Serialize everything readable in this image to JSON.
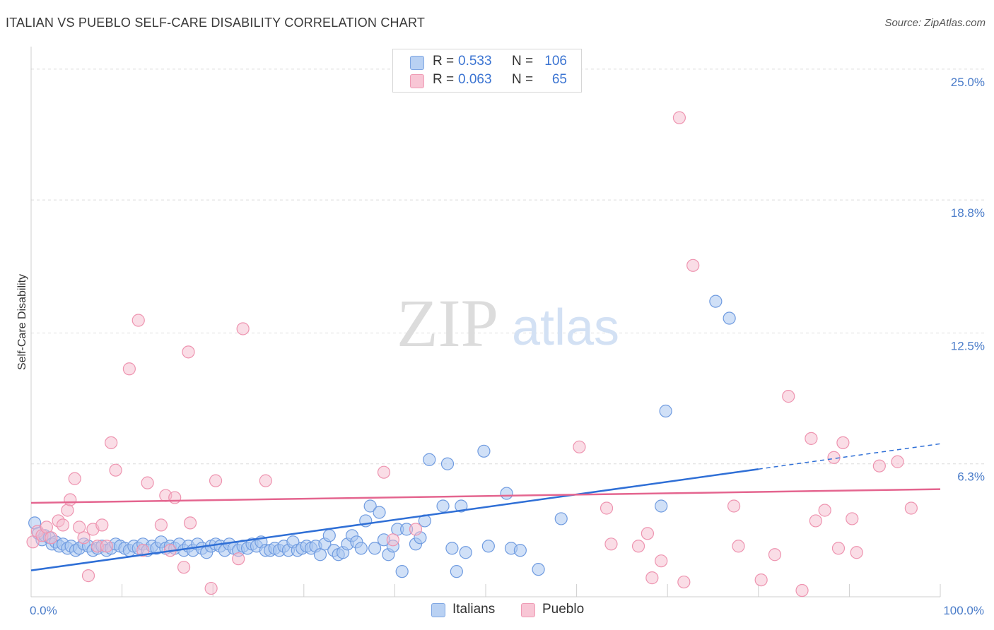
{
  "title": "ITALIAN VS PUEBLO SELF-CARE DISABILITY CORRELATION CHART",
  "source": "Source: ZipAtlas.com",
  "watermark": {
    "zip": "ZIP",
    "atlas": "atlas"
  },
  "legend": [
    {
      "r_label": "R =",
      "r_value": "0.533",
      "n_label": "N =",
      "n_value": "106"
    },
    {
      "r_label": "R =",
      "r_value": "0.063",
      "n_label": "N =",
      "n_value": "65"
    }
  ],
  "colors": {
    "italians_fill": "#a9c7f0",
    "italians_stroke": "#6f9be0",
    "italians_line": "#2f6fd6",
    "pueblo_fill": "#f6bccd",
    "pueblo_stroke": "#ee94b0",
    "pueblo_line": "#e4658f",
    "tick_text": "#4a7cc9",
    "grid": "#dcdcdc"
  },
  "chart_data": {
    "type": "scatter",
    "title": "ITALIAN VS PUEBLO SELF-CARE DISABILITY CORRELATION CHART",
    "xlabel": "",
    "ylabel": "Self-Care Disability",
    "xlim": [
      0,
      100
    ],
    "ylim": [
      0,
      25.8
    ],
    "x_tick_labels": [
      {
        "value": 0,
        "label": "0.0%"
      },
      {
        "value": 100,
        "label": "100.0%"
      }
    ],
    "y_tick_labels": [
      {
        "value": 6.3,
        "label": "6.3%"
      },
      {
        "value": 12.5,
        "label": "12.5%"
      },
      {
        "value": 18.8,
        "label": "18.8%"
      },
      {
        "value": 25.0,
        "label": "25.0%"
      }
    ],
    "series": [
      {
        "name": "Italians",
        "trend": {
          "x0": 0,
          "y0": 1.25,
          "x1": 80,
          "y1": 6.05,
          "dash_to_x": 100,
          "dash_to_y": 7.25
        },
        "points": [
          [
            0.4,
            3.5
          ],
          [
            0.8,
            3.0
          ],
          [
            1.2,
            2.7
          ],
          [
            1.5,
            2.9
          ],
          [
            2.0,
            2.8
          ],
          [
            2.3,
            2.5
          ],
          [
            2.7,
            2.6
          ],
          [
            3.1,
            2.4
          ],
          [
            3.5,
            2.5
          ],
          [
            4.0,
            2.3
          ],
          [
            4.4,
            2.4
          ],
          [
            4.9,
            2.2
          ],
          [
            5.3,
            2.3
          ],
          [
            5.8,
            2.5
          ],
          [
            6.3,
            2.4
          ],
          [
            6.8,
            2.2
          ],
          [
            7.3,
            2.3
          ],
          [
            7.8,
            2.4
          ],
          [
            8.3,
            2.2
          ],
          [
            8.8,
            2.3
          ],
          [
            9.3,
            2.5
          ],
          [
            9.8,
            2.4
          ],
          [
            10.3,
            2.3
          ],
          [
            10.8,
            2.2
          ],
          [
            11.3,
            2.4
          ],
          [
            11.8,
            2.3
          ],
          [
            12.3,
            2.5
          ],
          [
            12.8,
            2.2
          ],
          [
            13.3,
            2.4
          ],
          [
            13.8,
            2.3
          ],
          [
            14.3,
            2.6
          ],
          [
            14.8,
            2.3
          ],
          [
            15.3,
            2.4
          ],
          [
            15.8,
            2.3
          ],
          [
            16.3,
            2.5
          ],
          [
            16.8,
            2.2
          ],
          [
            17.3,
            2.4
          ],
          [
            17.8,
            2.2
          ],
          [
            18.3,
            2.5
          ],
          [
            18.8,
            2.3
          ],
          [
            19.3,
            2.1
          ],
          [
            19.8,
            2.4
          ],
          [
            20.3,
            2.5
          ],
          [
            20.8,
            2.4
          ],
          [
            21.3,
            2.2
          ],
          [
            21.8,
            2.5
          ],
          [
            22.3,
            2.3
          ],
          [
            22.8,
            2.2
          ],
          [
            23.3,
            2.4
          ],
          [
            23.8,
            2.3
          ],
          [
            24.3,
            2.5
          ],
          [
            24.8,
            2.4
          ],
          [
            25.3,
            2.6
          ],
          [
            25.8,
            2.2
          ],
          [
            26.3,
            2.2
          ],
          [
            26.8,
            2.3
          ],
          [
            27.3,
            2.2
          ],
          [
            27.8,
            2.4
          ],
          [
            28.3,
            2.2
          ],
          [
            28.8,
            2.6
          ],
          [
            29.3,
            2.2
          ],
          [
            29.8,
            2.3
          ],
          [
            30.3,
            2.4
          ],
          [
            30.8,
            2.3
          ],
          [
            31.3,
            2.4
          ],
          [
            31.8,
            2.0
          ],
          [
            32.3,
            2.5
          ],
          [
            32.8,
            2.9
          ],
          [
            33.3,
            2.2
          ],
          [
            33.8,
            2.0
          ],
          [
            34.3,
            2.1
          ],
          [
            34.8,
            2.5
          ],
          [
            35.3,
            2.9
          ],
          [
            35.8,
            2.6
          ],
          [
            36.3,
            2.3
          ],
          [
            36.8,
            3.6
          ],
          [
            37.3,
            4.3
          ],
          [
            37.8,
            2.3
          ],
          [
            38.3,
            4.0
          ],
          [
            38.8,
            2.7
          ],
          [
            39.3,
            2.0
          ],
          [
            39.8,
            2.4
          ],
          [
            40.3,
            3.2
          ],
          [
            40.8,
            1.2
          ],
          [
            41.3,
            3.2
          ],
          [
            42.3,
            2.5
          ],
          [
            42.8,
            2.8
          ],
          [
            43.3,
            3.6
          ],
          [
            43.8,
            6.5
          ],
          [
            45.3,
            4.3
          ],
          [
            45.8,
            6.3
          ],
          [
            46.3,
            2.3
          ],
          [
            46.8,
            1.2
          ],
          [
            47.3,
            4.3
          ],
          [
            47.8,
            2.1
          ],
          [
            49.8,
            6.9
          ],
          [
            50.3,
            2.4
          ],
          [
            52.3,
            4.9
          ],
          [
            52.8,
            2.3
          ],
          [
            53.8,
            2.2
          ],
          [
            55.8,
            1.3
          ],
          [
            58.3,
            3.7
          ],
          [
            69.3,
            4.3
          ],
          [
            69.8,
            8.8
          ],
          [
            75.3,
            14.0
          ],
          [
            76.8,
            13.2
          ]
        ]
      },
      {
        "name": "Pueblo",
        "trend": {
          "x0": 0,
          "y0": 4.45,
          "x1": 100,
          "y1": 5.1
        },
        "points": [
          [
            0.2,
            2.6
          ],
          [
            0.7,
            3.1
          ],
          [
            1.2,
            2.9
          ],
          [
            1.7,
            3.3
          ],
          [
            2.2,
            2.8
          ],
          [
            3.0,
            3.6
          ],
          [
            3.5,
            3.4
          ],
          [
            4.0,
            4.1
          ],
          [
            4.3,
            4.6
          ],
          [
            4.8,
            5.6
          ],
          [
            5.3,
            3.3
          ],
          [
            5.8,
            2.8
          ],
          [
            6.3,
            1.0
          ],
          [
            6.8,
            3.2
          ],
          [
            7.3,
            2.4
          ],
          [
            7.8,
            3.4
          ],
          [
            8.3,
            2.4
          ],
          [
            8.8,
            7.3
          ],
          [
            9.3,
            6.0
          ],
          [
            10.8,
            10.8
          ],
          [
            11.8,
            13.1
          ],
          [
            12.3,
            2.2
          ],
          [
            12.8,
            5.4
          ],
          [
            14.3,
            3.4
          ],
          [
            14.8,
            4.8
          ],
          [
            15.3,
            2.2
          ],
          [
            15.8,
            4.7
          ],
          [
            16.8,
            1.4
          ],
          [
            17.3,
            11.6
          ],
          [
            17.5,
            3.5
          ],
          [
            19.8,
            0.4
          ],
          [
            20.3,
            5.5
          ],
          [
            22.8,
            1.8
          ],
          [
            23.3,
            12.7
          ],
          [
            25.8,
            5.5
          ],
          [
            38.8,
            5.9
          ],
          [
            39.8,
            2.7
          ],
          [
            42.3,
            3.2
          ],
          [
            60.3,
            7.1
          ],
          [
            63.3,
            4.2
          ],
          [
            63.8,
            2.5
          ],
          [
            66.8,
            2.4
          ],
          [
            67.8,
            3.0
          ],
          [
            68.3,
            0.9
          ],
          [
            69.3,
            1.7
          ],
          [
            71.3,
            22.7
          ],
          [
            71.8,
            0.7
          ],
          [
            72.8,
            15.7
          ],
          [
            77.3,
            4.3
          ],
          [
            77.8,
            2.4
          ],
          [
            80.3,
            0.8
          ],
          [
            81.8,
            2.0
          ],
          [
            83.3,
            9.5
          ],
          [
            84.8,
            0.3
          ],
          [
            85.8,
            7.5
          ],
          [
            86.3,
            3.6
          ],
          [
            87.3,
            4.1
          ],
          [
            88.3,
            6.6
          ],
          [
            88.8,
            2.3
          ],
          [
            89.3,
            7.3
          ],
          [
            90.3,
            3.7
          ],
          [
            90.8,
            2.1
          ],
          [
            93.3,
            6.2
          ],
          [
            95.3,
            6.4
          ],
          [
            96.8,
            4.2
          ]
        ]
      }
    ]
  },
  "bottom_legend": [
    {
      "label": "Italians"
    },
    {
      "label": "Pueblo"
    }
  ]
}
